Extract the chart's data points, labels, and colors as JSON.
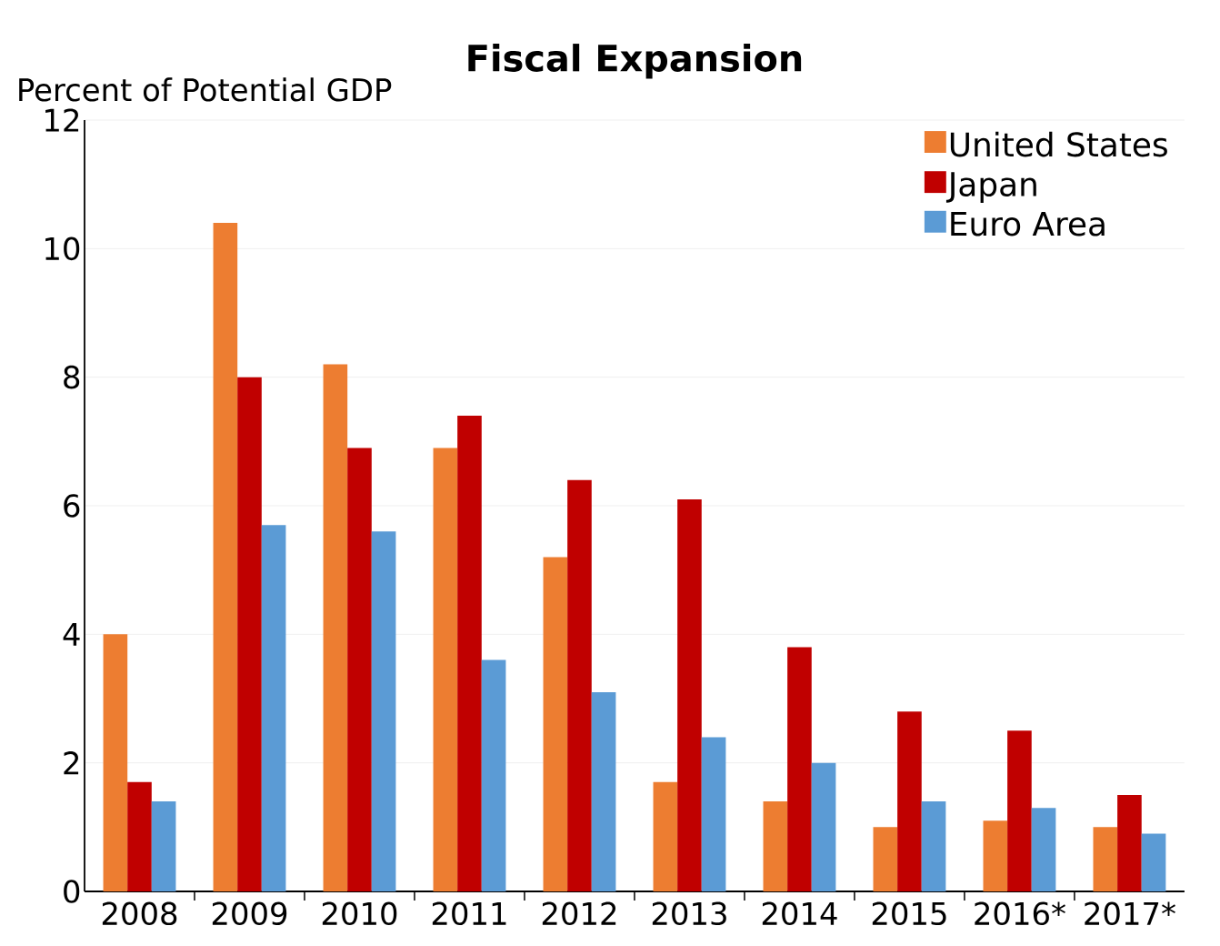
{
  "chart_data": {
    "type": "bar",
    "title": "Fiscal Expansion",
    "ylabel": "Percent of Potential GDP",
    "categories": [
      "2008",
      "2009",
      "2010",
      "2011",
      "2012",
      "2013",
      "2014",
      "2015",
      "2016*",
      "2017*"
    ],
    "series": [
      {
        "name": "United States",
        "color": "#ed7d31",
        "values": [
          4.0,
          10.4,
          8.2,
          6.9,
          5.2,
          1.7,
          1.4,
          1.0,
          1.1,
          1.0
        ]
      },
      {
        "name": "Japan",
        "color": "#c00000",
        "values": [
          1.7,
          8.0,
          6.9,
          7.4,
          6.4,
          6.1,
          3.8,
          2.8,
          2.5,
          1.5
        ]
      },
      {
        "name": "Euro Area",
        "color": "#5b9bd5",
        "values": [
          1.4,
          5.7,
          5.6,
          3.6,
          3.1,
          2.4,
          2.0,
          1.4,
          1.3,
          0.9
        ]
      }
    ],
    "ylim": [
      0,
      12
    ],
    "yticks": [
      0,
      2,
      4,
      6,
      8,
      10,
      12
    ],
    "grid": "y",
    "legend": "top right"
  }
}
